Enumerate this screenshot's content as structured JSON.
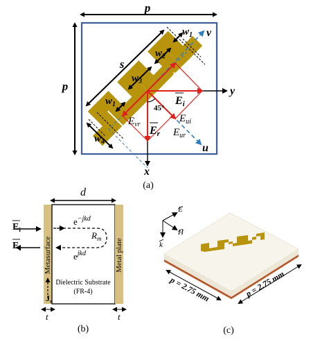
{
  "panel_a": {
    "caption": "(a)",
    "dims": {
      "p_top": "p",
      "p_left": "p",
      "s": "s",
      "w1_top": "w",
      "w1_top_sub": "1",
      "w2": "w",
      "w2_sub": "2",
      "w3": "w",
      "w3_sub": "3",
      "w1_left": "w",
      "w1_left_sub": "1",
      "w4": "w",
      "w4_sub": "4"
    },
    "axes": {
      "y": "y",
      "x": "x",
      "u": "u",
      "v": "v"
    },
    "fields": {
      "Ei": "E",
      "Ei_sub": "i",
      "Er": "E",
      "Er_sub": "r",
      "Evi": "E",
      "Evi_sub": "vi",
      "Eui": "E",
      "Eui_sub": "ui",
      "Evr": "E",
      "Evr_sub": "vr",
      "Eur": "E",
      "Eur_sub": "ur",
      "angle": "45°"
    },
    "colors": {
      "element": "#b8930c",
      "red_arrow": "#e0201c",
      "blue_axis": "#2d7fbd",
      "border": "#3d5d9a"
    }
  },
  "panel_b": {
    "caption": "(b)",
    "d_label": "d",
    "wave_in": "e",
    "wave_in_exp": "−jkd",
    "wave_out": "e",
    "wave_out_exp": "jkd",
    "rm": "R",
    "rm_sub": "m",
    "Ei": "E",
    "Ei_sub": "i",
    "Er": "E",
    "Er_sub": "r",
    "metasurface": "Metasurface",
    "metal_plate": "Metal plate",
    "substrate_line1": "Dielectric Substrate",
    "substrate_line2": "(FR-4)",
    "js": "J",
    "js_sub": "s",
    "t_left": "t",
    "t_right": "t"
  },
  "panel_c": {
    "caption": "(c)",
    "E": "E",
    "H": "H",
    "k": "k",
    "p_left": "p = 2.75 mm",
    "p_right": "p = 2.75 mm"
  }
}
